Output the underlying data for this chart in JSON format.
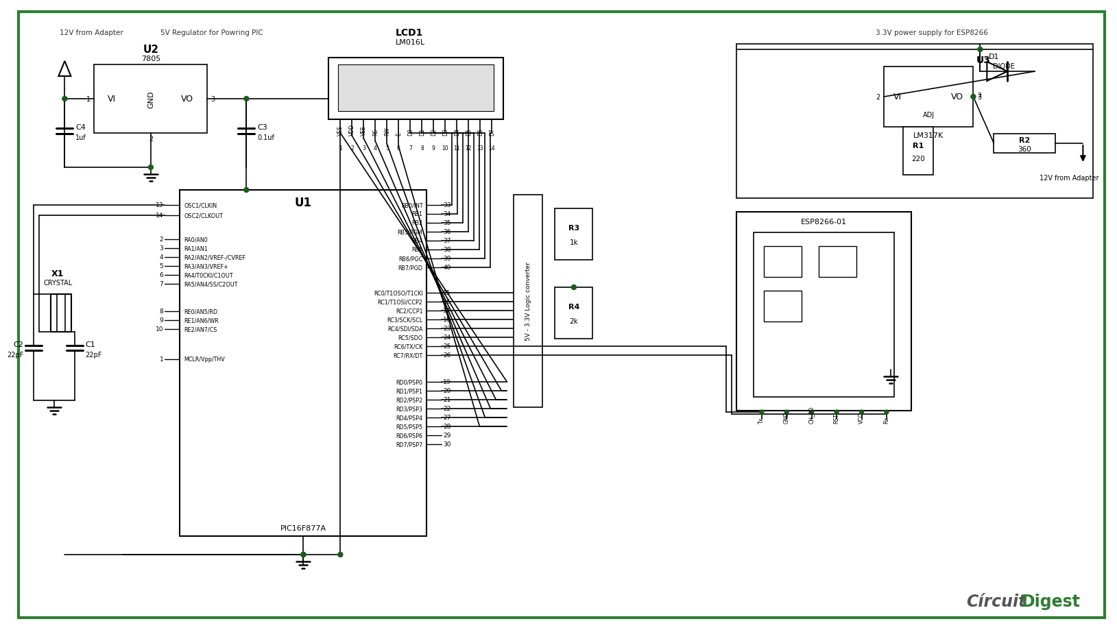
{
  "bg_color": "#ffffff",
  "border_color": "#2e7d32",
  "lc": "#000000",
  "jc": "#1a5c1a",
  "tc": "#333333",
  "logo_gray": "#555555",
  "logo_green": "#2e7d32",
  "u2_label": "U2",
  "u2_type": "7805",
  "u3_label": "U3",
  "u3_type": "LM317K",
  "u1_label": "U1",
  "u1_type": "PIC16F877A",
  "lcd_label": "LCD1",
  "lcd_type": "LM016L",
  "esp_label": "ESP8266-01",
  "c4_label": "C4",
  "c4_val": "1uf",
  "c3_label": "C3",
  "c3_val": "0.1uf",
  "c1_label": "C1",
  "c1_val": "22pF",
  "c2_label": "C2",
  "c2_val": "22pF",
  "r1_label": "R1",
  "r1_val": "220",
  "r2_label": "R2",
  "r2_val": "360",
  "r3_label": "R3",
  "r3_val": "1k",
  "r4_label": "R4",
  "r4_val": "2k",
  "d1_label": "D1",
  "d1_type": "DIODE",
  "x1_label": "X1",
  "x1_type": "CRYSTAL",
  "label_12v_left": "12V from Adapter",
  "label_5v_reg": "5V Regulator for Powring PIC",
  "label_3v3": "3.3V power supply for ESP8266",
  "label_12v_right": "12V from Adapter",
  "label_logic": "5V - 3.3V Logic converter",
  "left_pins": [
    [
      "13",
      "OSC1/CLKIN"
    ],
    [
      "14",
      "OSC2/CLKOUT"
    ],
    [
      "2",
      "RA0/AN0"
    ],
    [
      "3",
      "RA1/AN1"
    ],
    [
      "4",
      "RA2/AN2/VREF-/CVREF"
    ],
    [
      "5",
      "RA3/AN3/VREF+"
    ],
    [
      "6",
      "RA4/T0CKI/C1OUT"
    ],
    [
      "7",
      "RA5/AN4/SS/C2OUT"
    ],
    [
      "8",
      "RE0/AN5/RD"
    ],
    [
      "9",
      "RE1/AN6/WR"
    ],
    [
      "10",
      "RE2/AN7/CS"
    ],
    [
      "1",
      "MCLR/Vpp/THV"
    ]
  ],
  "right_pins": [
    [
      "33",
      "RB0/INT"
    ],
    [
      "34",
      "RB1"
    ],
    [
      "35",
      "RB2"
    ],
    [
      "36",
      "RB3/PGM"
    ],
    [
      "37",
      "RB4"
    ],
    [
      "38",
      "RB5"
    ],
    [
      "39",
      "RB6/PGC"
    ],
    [
      "40",
      "RB7/PGD"
    ],
    [
      "15",
      "RC0/T1OSO/T1CKI"
    ],
    [
      "16",
      "RC1/T1OSI/CCP2"
    ],
    [
      "17",
      "RC2/CCP1"
    ],
    [
      "18",
      "RC3/SCK/SCL"
    ],
    [
      "23",
      "RC4/SDI/SDA"
    ],
    [
      "24",
      "RC5/SDO"
    ],
    [
      "25",
      "RC6/TX/CK"
    ],
    [
      "26",
      "RC7/RX/DT"
    ],
    [
      "19",
      "RD0/PSP0"
    ],
    [
      "20",
      "RD1/PSP1"
    ],
    [
      "21",
      "RD2/PSP2"
    ],
    [
      "22",
      "RD3/PSP3"
    ],
    [
      "27",
      "RD4/PSP4"
    ],
    [
      "28",
      "RD5/PSP5"
    ],
    [
      "29",
      "RD6/PSP6"
    ],
    [
      "30",
      "RD7/PSP7"
    ]
  ],
  "lcd_pins": [
    "VSS",
    "VDD",
    "VEE",
    "RS",
    "RW",
    "E",
    "D0",
    "D1",
    "D2",
    "D3",
    "D4",
    "D5",
    "D6",
    "D7"
  ],
  "esp_pins": [
    "Tx",
    "GND",
    "CH_PD",
    "RST",
    "VCC",
    "Rx"
  ]
}
